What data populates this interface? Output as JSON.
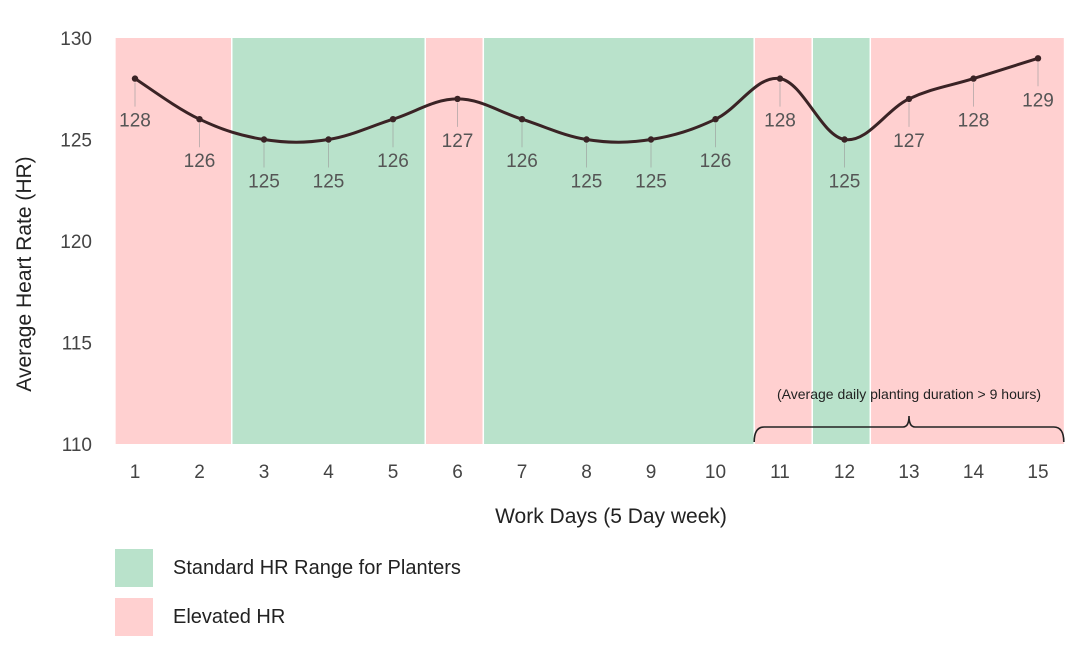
{
  "colors": {
    "standard": "#b9e2cb",
    "elevated": "#ffd0d0",
    "line": "#3a2325",
    "bracket": "#222222"
  },
  "chart_data": {
    "type": "line",
    "x": [
      1,
      2,
      3,
      4,
      5,
      6,
      7,
      8,
      9,
      10,
      11,
      12,
      13,
      14,
      15
    ],
    "values": [
      128,
      126,
      125,
      125,
      126,
      127,
      126,
      125,
      125,
      126,
      128,
      125,
      127,
      128,
      129
    ],
    "data_labels": [
      "128",
      "126",
      "125",
      "125",
      "126",
      "127",
      "126",
      "125",
      "125",
      "126",
      "128",
      "125",
      "127",
      "128",
      "129"
    ],
    "xlabel": "Work Days (5 Day week)",
    "ylabel": "Average Heart Rate (HR)",
    "ylim": [
      110,
      130
    ],
    "yticks": [
      110,
      115,
      120,
      125,
      130
    ],
    "ytick_labels": [
      "110",
      "115",
      "120",
      "125",
      "130"
    ],
    "xtick_labels": [
      "1",
      "2",
      "3",
      "4",
      "5",
      "6",
      "7",
      "8",
      "9",
      "10",
      "11",
      "12",
      "13",
      "14",
      "15"
    ],
    "bands": [
      {
        "from": 0.7,
        "to": 2.5,
        "kind": "elevated"
      },
      {
        "from": 2.5,
        "to": 5.5,
        "kind": "standard"
      },
      {
        "from": 5.5,
        "to": 6.4,
        "kind": "elevated"
      },
      {
        "from": 6.4,
        "to": 10.6,
        "kind": "standard"
      },
      {
        "from": 10.6,
        "to": 11.5,
        "kind": "elevated"
      },
      {
        "from": 11.5,
        "to": 12.4,
        "kind": "standard"
      },
      {
        "from": 12.4,
        "to": 15.4,
        "kind": "elevated"
      }
    ],
    "annotation": {
      "text": "(Average daily planting duration > 9 hours)",
      "from": 10.6,
      "to": 15.4
    },
    "grid": false,
    "legend_position": "bottom-left"
  },
  "legend": [
    {
      "label": "Standard HR Range for Planters",
      "kind": "standard"
    },
    {
      "label": "Elevated HR",
      "kind": "elevated"
    }
  ]
}
